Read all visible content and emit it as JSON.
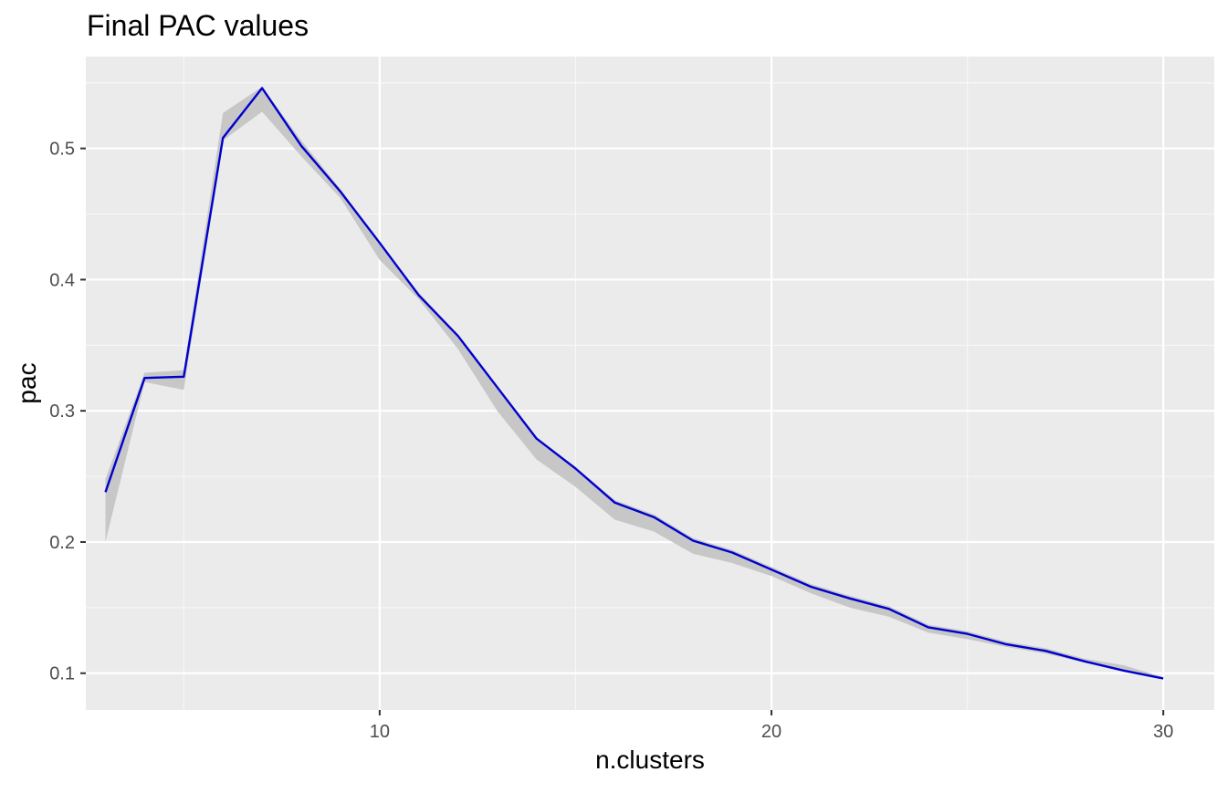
{
  "chart_data": {
    "type": "line",
    "title": "Final PAC values",
    "xlabel": "n.clusters",
    "ylabel": "pac",
    "xlim": [
      2.5,
      31.3
    ],
    "ylim": [
      0.072,
      0.57
    ],
    "x_ticks": [
      10,
      20,
      30
    ],
    "x_minor_ticks": [
      5,
      15,
      25
    ],
    "y_ticks": [
      0.1,
      0.2,
      0.3,
      0.4,
      0.5
    ],
    "y_minor_ticks": [
      0.15,
      0.25,
      0.35,
      0.45,
      0.55
    ],
    "grid": true,
    "legend": "none",
    "series": [
      {
        "x": [
          3,
          4,
          5,
          6,
          7,
          8,
          9,
          10,
          11,
          12,
          13,
          14,
          15,
          16,
          17,
          18,
          19,
          20,
          21,
          22,
          23,
          24,
          25,
          26,
          27,
          28,
          29,
          30
        ],
        "y": [
          0.238,
          0.325,
          0.326,
          0.508,
          0.546,
          0.502,
          0.467,
          0.428,
          0.388,
          0.357,
          0.318,
          0.279,
          0.256,
          0.23,
          0.219,
          0.201,
          0.192,
          0.179,
          0.166,
          0.157,
          0.149,
          0.135,
          0.13,
          0.122,
          0.117,
          0.109,
          0.102,
          0.096
        ],
        "ribbon_lower": [
          0.2,
          0.322,
          0.316,
          0.506,
          0.528,
          0.494,
          0.462,
          0.415,
          0.385,
          0.347,
          0.3,
          0.263,
          0.242,
          0.217,
          0.208,
          0.191,
          0.184,
          0.174,
          0.161,
          0.15,
          0.143,
          0.131,
          0.126,
          0.12,
          0.115,
          0.108,
          0.101,
          0.096
        ],
        "ribbon_upper": [
          0.248,
          0.329,
          0.331,
          0.527,
          0.547,
          0.506,
          0.469,
          0.428,
          0.39,
          0.358,
          0.319,
          0.279,
          0.257,
          0.232,
          0.221,
          0.203,
          0.194,
          0.181,
          0.168,
          0.159,
          0.151,
          0.137,
          0.132,
          0.124,
          0.119,
          0.111,
          0.106,
          0.097
        ],
        "color": "#0000cd",
        "ribbon_color": "#c7c7c7"
      }
    ]
  },
  "colors": {
    "panel_background": "#ebebeb",
    "grid_major": "#ffffff",
    "grid_minor": "#f7f7f7",
    "tick_color": "#333333"
  }
}
